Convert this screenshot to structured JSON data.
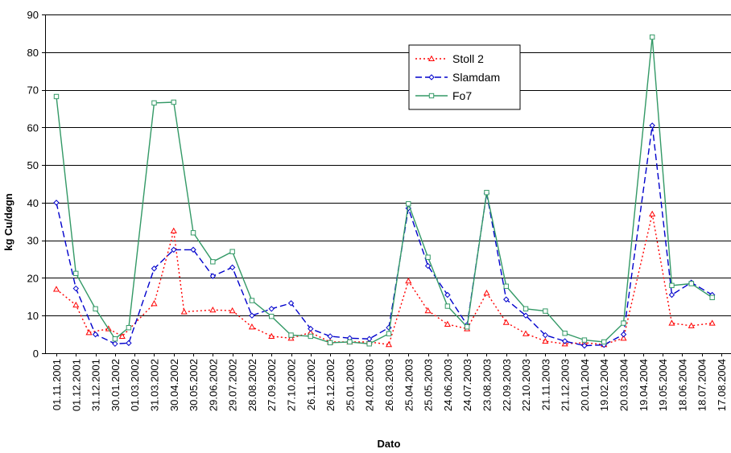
{
  "chart_data": {
    "type": "line",
    "xlabel": "Dato",
    "ylabel": "kg Cu/døgn",
    "ylim": [
      0,
      90
    ],
    "yticks": [
      0,
      10,
      20,
      30,
      40,
      50,
      60,
      70,
      80,
      90
    ],
    "grid": true,
    "legend_position": "top-right",
    "x_tick_labels": [
      "01.11.2001",
      "01.12.2001",
      "31.12.2001",
      "30.01.2002",
      "01.03.2002",
      "31.03.2002",
      "30.04.2002",
      "30.05.2002",
      "29.06.2002",
      "29.07.2002",
      "28.08.2002",
      "27.09.2002",
      "27.10.2002",
      "26.11.2002",
      "26.12.2002",
      "25.01.2003",
      "24.02.2003",
      "26.03.2003",
      "25.04.2003",
      "25.05.2003",
      "24.06.2003",
      "24.07.2003",
      "23.08.2003",
      "22.09.2003",
      "22.10.2003",
      "21.11.2003",
      "21.12.2003",
      "20.01.2004",
      "19.02.2004",
      "20.03.2004",
      "19.04.2004",
      "19.05.2004",
      "18.06.2004",
      "18.07.2004",
      "17.08.2004"
    ],
    "x_range": [
      "01.11.2001",
      "17.08.2004"
    ],
    "series": [
      {
        "name": "Stoll 2",
        "color": "#ff0000",
        "marker": "triangle",
        "dash": "dot",
        "x": [
          "01.11.2001",
          "01.12.2001",
          "21.12.2001",
          "20.01.2002",
          "10.02.2002",
          "31.03.2002",
          "30.04.2002",
          "16.05.2002",
          "29.06.2002",
          "29.07.2002",
          "28.08.2002",
          "27.09.2002",
          "27.10.2002",
          "26.11.2002",
          "26.12.2002",
          "25.01.2003",
          "24.02.2003",
          "26.03.2003",
          "25.04.2003",
          "25.05.2003",
          "24.06.2003",
          "24.07.2003",
          "23.08.2003",
          "22.09.2003",
          "22.10.2003",
          "21.11.2003",
          "21.12.2003",
          "20.01.2004",
          "19.02.2004",
          "20.03.2004",
          "03.05.2004",
          "02.06.2004",
          "02.07.2004",
          "03.08.2004"
        ],
        "values": [
          17,
          12.8,
          5.5,
          6.5,
          4.5,
          13.2,
          32.5,
          11,
          11.5,
          11.3,
          7,
          4.5,
          4,
          5.5,
          3,
          3,
          3,
          2.3,
          19.2,
          11.3,
          7.7,
          6.5,
          16,
          8.2,
          5.2,
          3.2,
          2.5,
          2.8,
          2.3,
          4,
          37,
          8,
          7.3,
          8
        ]
      },
      {
        "name": "Slamdam",
        "color": "#0000cc",
        "marker": "diamond",
        "dash": "dash",
        "x": [
          "01.11.2001",
          "01.12.2001",
          "31.12.2001",
          "30.01.2002",
          "20.02.2002",
          "31.03.2002",
          "30.04.2002",
          "30.05.2002",
          "29.06.2002",
          "29.07.2002",
          "28.08.2002",
          "27.09.2002",
          "27.10.2002",
          "26.11.2002",
          "26.12.2002",
          "25.01.2003",
          "24.02.2003",
          "26.03.2003",
          "25.04.2003",
          "25.05.2003",
          "24.06.2003",
          "24.07.2003",
          "23.08.2003",
          "22.09.2003",
          "22.10.2003",
          "21.11.2003",
          "21.12.2003",
          "20.01.2004",
          "19.02.2004",
          "20.03.2004",
          "03.05.2004",
          "02.06.2004",
          "02.07.2004",
          "03.08.2004"
        ],
        "values": [
          40,
          17.2,
          5,
          2.5,
          2.7,
          22.5,
          27.5,
          27.5,
          20.5,
          22.8,
          10,
          11.8,
          13.3,
          6.5,
          4.5,
          4,
          3.8,
          6.8,
          38.5,
          23.2,
          15.5,
          7.5,
          42.5,
          14.3,
          10,
          4.8,
          3.2,
          2,
          2.2,
          5,
          60.5,
          15.5,
          18.8,
          15.5
        ]
      },
      {
        "name": "Fo7",
        "color": "#339966",
        "marker": "square",
        "dash": "solid",
        "x": [
          "01.11.2001",
          "01.12.2001",
          "31.12.2001",
          "30.01.2002",
          "20.02.2002",
          "31.03.2002",
          "30.04.2002",
          "30.05.2002",
          "29.06.2002",
          "29.07.2002",
          "28.08.2002",
          "27.09.2002",
          "27.10.2002",
          "26.11.2002",
          "26.12.2002",
          "25.01.2003",
          "24.02.2003",
          "26.03.2003",
          "25.04.2003",
          "25.05.2003",
          "24.06.2003",
          "24.07.2003",
          "23.08.2003",
          "22.09.2003",
          "22.10.2003",
          "21.11.2003",
          "21.12.2003",
          "20.01.2004",
          "19.02.2004",
          "20.03.2004",
          "03.05.2004",
          "02.06.2004",
          "02.07.2004",
          "03.08.2004"
        ],
        "values": [
          68.2,
          21.2,
          11.8,
          3.8,
          6.8,
          66.5,
          66.7,
          32,
          24.3,
          27,
          14,
          9.8,
          4.8,
          4.5,
          2.8,
          3,
          2.5,
          5.2,
          39.7,
          25.5,
          12.5,
          7,
          42.7,
          17.8,
          11.8,
          11.2,
          5.3,
          3.5,
          3,
          8,
          84,
          18,
          18.5,
          14.8
        ]
      }
    ]
  }
}
